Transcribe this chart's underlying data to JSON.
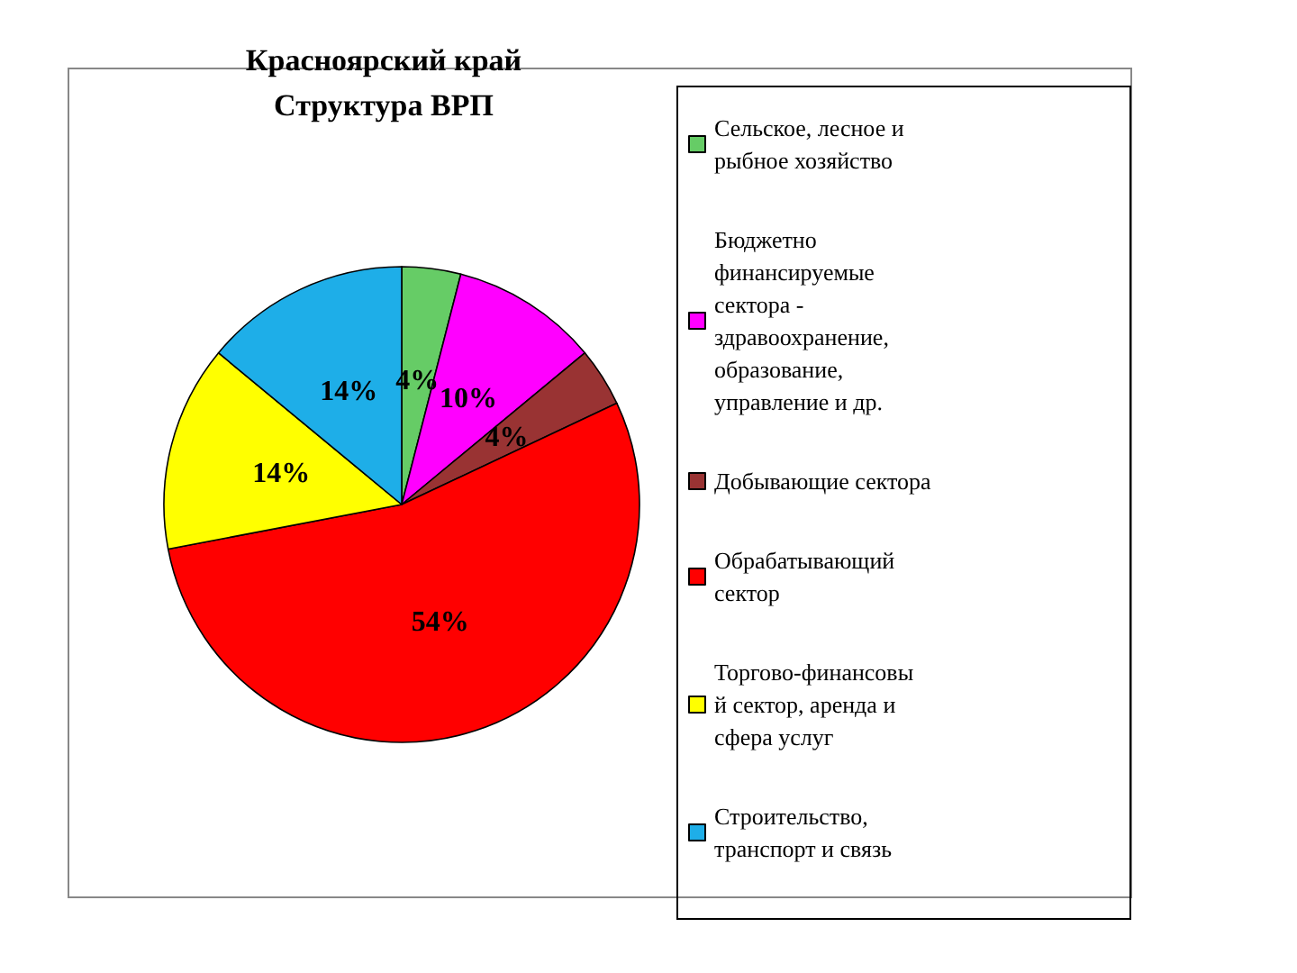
{
  "chart_data": {
    "type": "pie",
    "title": "Красноярский край",
    "subtitle": "Структура ВРП",
    "categories": [
      "Сельское, лесное и рыбное хозяйство",
      "Бюджетно финансируемые сектора - здравоохранение, образование, управление и др.",
      "Добывающие сектора",
      "Обрабатывающий сектор",
      "Торгово-финансовый сектор, аренда и сфера услуг",
      "Строительство, транспорт и связь"
    ],
    "values": [
      4,
      10,
      4,
      54,
      14,
      14
    ],
    "value_labels": [
      "4%",
      "10%",
      "4%",
      "54%",
      "14%",
      "14%"
    ],
    "colors": [
      "#66cc66",
      "#ff00ff",
      "#993333",
      "#ff0000",
      "#ffff00",
      "#1eaee8"
    ],
    "legend": "right"
  }
}
